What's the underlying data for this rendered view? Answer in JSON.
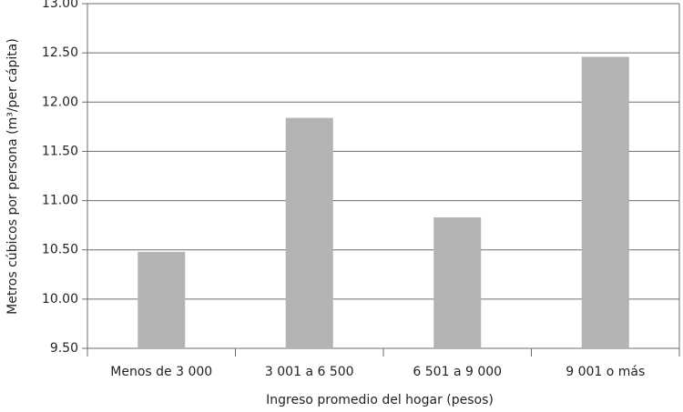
{
  "chart_data": {
    "type": "bar",
    "x_label": "Ingreso promedio del hogar (pesos)",
    "y_label": "Metros cúbicos por persona (m³/per cápita)",
    "categories": [
      "Menos de 3 000",
      "3 001 a 6 500",
      "6 501 a 9 000",
      "9 001 o más"
    ],
    "values": [
      10.48,
      11.84,
      10.83,
      12.46
    ],
    "color": "#b3b3b3",
    "ylim": [
      9.5,
      13
    ],
    "yticks": [
      {
        "value": 9.5,
        "label": "9.50"
      },
      {
        "value": 10,
        "label": "10.00"
      },
      {
        "value": 10.5,
        "label": "10.50"
      },
      {
        "value": 11,
        "label": "11.00"
      },
      {
        "value": 11.5,
        "label": "11.50"
      },
      {
        "value": 12,
        "label": "12.00"
      },
      {
        "value": 12.5,
        "label": "12.50"
      },
      {
        "value": 13,
        "label": "13.00"
      }
    ],
    "grid": true
  }
}
